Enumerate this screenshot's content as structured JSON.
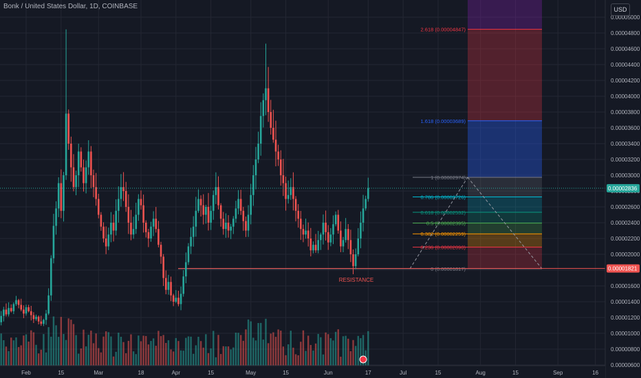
{
  "header": {
    "title": "Bonk / United States Dollar, 1D, COINBASE",
    "currency": "USD"
  },
  "colors": {
    "up": "#26a69a",
    "down": "#ef5350",
    "background": "#151924",
    "grid": "#242733",
    "axis_text": "#b2b5be"
  },
  "chart_data": {
    "type": "candlestick",
    "title": "Bonk / United States Dollar, 1D, COINBASE",
    "ylim": [
      5.9e-06,
      5.2e-06
    ],
    "y_ticks": [
      "0.00000600",
      "0.00000800",
      "0.00001000",
      "0.00001200",
      "0.00001400",
      "0.00001600",
      "0.00001800",
      "0.00002000",
      "0.00002200",
      "0.00002400",
      "0.00002600",
      "0.00002800",
      "0.00003000",
      "0.00003200",
      "0.00003400",
      "0.00003600",
      "0.00003800",
      "0.00004000",
      "0.00004200",
      "0.00004400",
      "0.00004600",
      "0.00004800",
      "0.00005000"
    ],
    "x_ticks": [
      {
        "label": "Feb",
        "day": 31
      },
      {
        "label": "15",
        "day": 45
      },
      {
        "label": "Mar",
        "day": 60
      },
      {
        "label": "18",
        "day": 77
      },
      {
        "label": "Apr",
        "day": 91
      },
      {
        "label": "15",
        "day": 105
      },
      {
        "label": "May",
        "day": 121
      },
      {
        "label": "15",
        "day": 135
      },
      {
        "label": "Jun",
        "day": 152
      },
      {
        "label": "17",
        "day": 168
      },
      {
        "label": "Jul",
        "day": 182
      },
      {
        "label": "15",
        "day": 196
      },
      {
        "label": "Aug",
        "day": 213
      },
      {
        "label": "15",
        "day": 227
      },
      {
        "label": "Sep",
        "day": 244
      },
      {
        "label": "16",
        "day": 259
      }
    ],
    "last_price": "0.00002836",
    "support_label": "0.00001821",
    "resistance_label": "RESISTANCE",
    "fib_levels": [
      {
        "label": "0 (0.00001817)",
        "value": 1.817e-05,
        "color": "#787b86"
      },
      {
        "label": "0.236 (0.00002090)",
        "value": 2.09e-05,
        "color": "#f23645"
      },
      {
        "label": "0.382 (0.00002259)",
        "value": 2.259e-05,
        "color": "#ff9800"
      },
      {
        "label": "0.5 (0.00002395)",
        "value": 2.395e-05,
        "color": "#4caf50"
      },
      {
        "label": "0.618 (0.00002532)",
        "value": 2.532e-05,
        "color": "#089981"
      },
      {
        "label": "0.786 (0.00002726)",
        "value": 2.726e-05,
        "color": "#00bcd4"
      },
      {
        "label": "1 (0.00002974)",
        "value": 2.974e-05,
        "color": "#787b86"
      },
      {
        "label": "1.618 (0.00003689)",
        "value": 3.689e-05,
        "color": "#2962ff"
      },
      {
        "label": "2.618 (0.00004847)",
        "value": 4.847e-05,
        "color": "#f23645"
      }
    ],
    "closes": [
      1.12e-05,
      1.08e-05,
      1.15e-05,
      1.11e-05,
      1.19e-05,
      1.16e-05,
      1.13e-05,
      1.2e-05,
      1.14e-05,
      1.08e-05,
      1.05e-05,
      1.1e-05,
      1.06e-05,
      1.01e-05,
      1.04e-05,
      9.9e-06,
      1.03e-05,
      1e-05,
      1.06e-05,
      1.14e-05,
      1.22e-05,
      1.3e-05,
      1.24e-05,
      1.32e-05,
      1.28e-05,
      1.37e-05,
      1.42e-05,
      1.36e-05,
      1.3e-05,
      1.25e-05,
      1.33e-05,
      1.28e-05,
      1.23e-05,
      1.18e-05,
      1.21e-05,
      1.15e-05,
      1.12e-05,
      1.17e-05,
      1.25e-05,
      1.48e-05,
      1.95e-05,
      2.36e-05,
      2.58e-05,
      2.9e-05,
      2.55e-05,
      3e-05,
      3.78e-05,
      3.4e-05,
      3.1e-05,
      2.85e-05,
      3e-05,
      3.3e-05,
      3.1e-05,
      2.9e-05,
      3.1e-05,
      3.3e-05,
      3e-05,
      2.85e-05,
      2.7e-05,
      2.5e-05,
      2.35e-05,
      2.2e-05,
      2.1e-05,
      2.25e-05,
      2.4e-05,
      2.3e-05,
      2.55e-05,
      2.7e-05,
      2.85e-05,
      2.8e-05,
      2.6e-05,
      2.4e-05,
      2.25e-05,
      2.32e-05,
      2.5e-05,
      2.7e-05,
      2.62e-05,
      2.4e-05,
      2.28e-05,
      2.2e-05,
      2.35e-05,
      2.45e-05,
      2.32e-05,
      2.12e-05,
      1.97e-05,
      1.7e-05,
      1.55e-05,
      1.65e-05,
      1.48e-05,
      1.4e-05,
      1.45e-05,
      1.37e-05,
      1.5e-05,
      1.72e-05,
      1.9e-05,
      2.1e-05,
      2.22e-05,
      2.35e-05,
      2.55e-05,
      2.7e-05,
      2.62e-05,
      2.5e-05,
      2.6e-05,
      2.4e-05,
      2.55e-05,
      2.75e-05,
      2.85e-05,
      2.62e-05,
      2.45e-05,
      2.32e-05,
      2.4e-05,
      2.3e-05,
      2.35e-05,
      2.45e-05,
      2.58e-05,
      2.7e-05,
      2.55e-05,
      2.42e-05,
      2.3e-05,
      2.5e-05,
      2.75e-05,
      3e-05,
      3.2e-05,
      3.4e-05,
      3.75e-05,
      3.95e-05,
      4.1e-05,
      3.8e-05,
      3.6e-05,
      3.45e-05,
      3.3e-05,
      3.2e-05,
      3e-05,
      2.9e-05,
      2.7e-05,
      2.75e-05,
      2.85e-05,
      2.7e-05,
      2.55e-05,
      2.45e-05,
      2.32e-05,
      2.25e-05,
      2.3e-05,
      2.2e-05,
      2.05e-05,
      2.12e-05,
      2.05e-05,
      2.18e-05,
      2.25e-05,
      2.4e-05,
      2.28e-05,
      2.15e-05,
      2.25e-05,
      2.38e-05,
      2.5e-05,
      2.3e-05,
      2.1e-05,
      2.18e-05,
      2.32e-05,
      2.18e-05,
      2e-05,
      1.85e-05,
      2e-05,
      2.2e-05,
      2.4e-05,
      2.58e-05,
      2.7e-05,
      2.84e-05
    ]
  }
}
